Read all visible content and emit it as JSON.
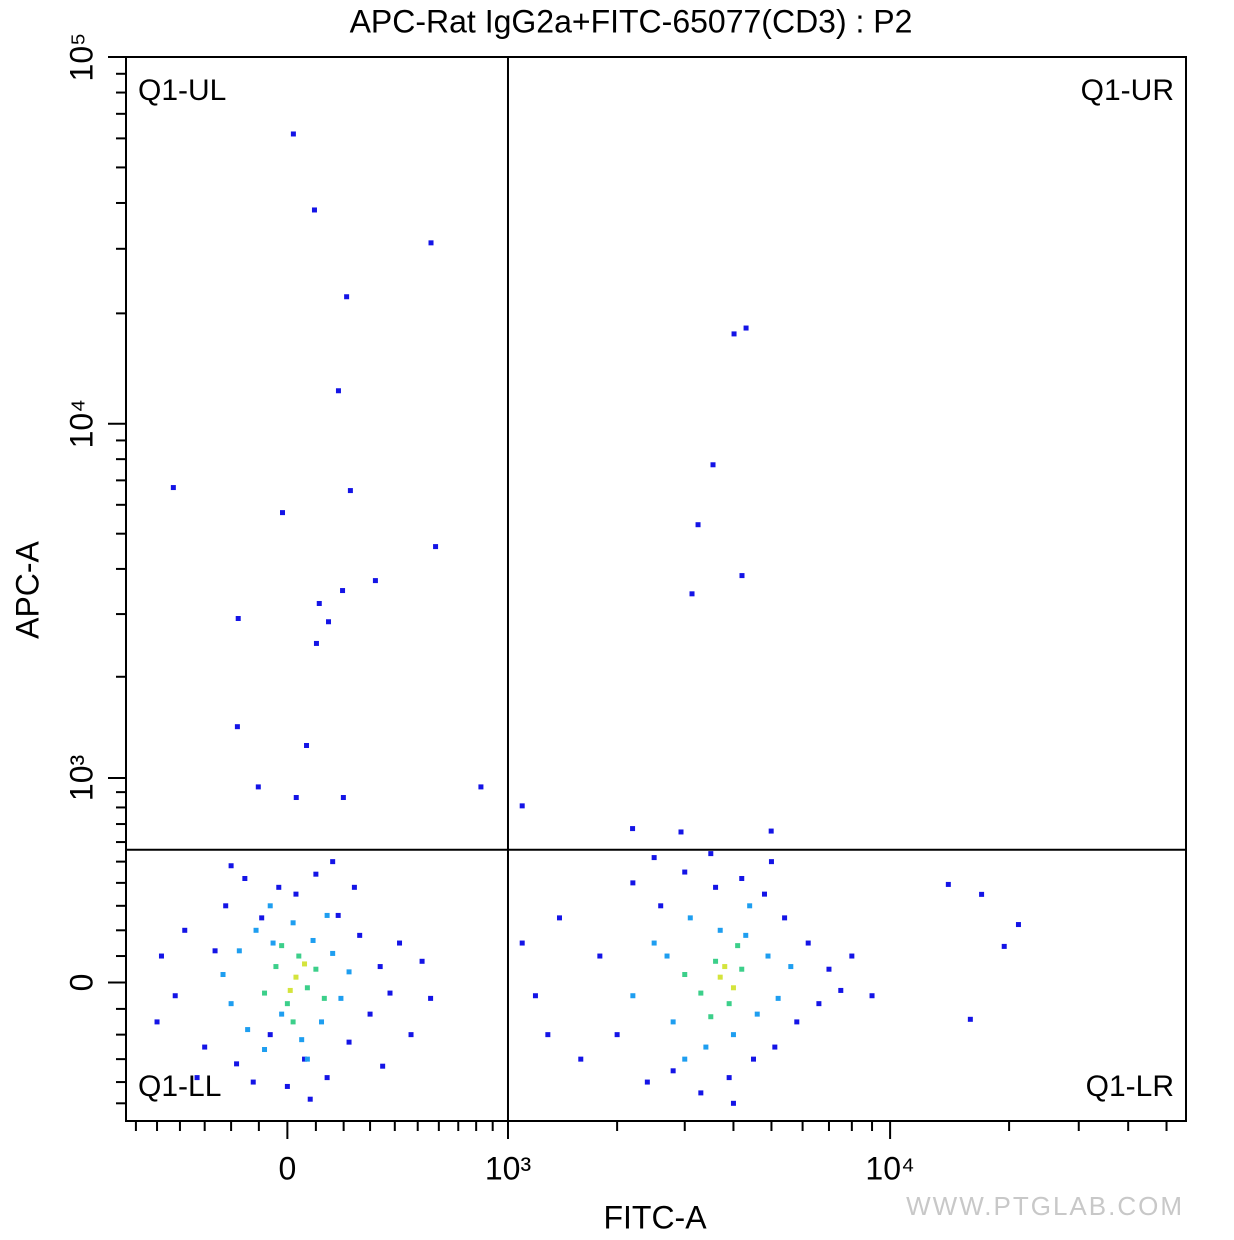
{
  "chart_data": {
    "type": "scatter",
    "title": "APC-Rat IgG2a+FITC-65077(CD3) : P2",
    "x_label": "FITC-A",
    "y_label": "APC-A",
    "watermark": "WWW.PTGLAB.COM",
    "scale": "biexponential",
    "xlim": [
      -650,
      56000
    ],
    "ylim": [
      -590,
      100000
    ],
    "xticks": [
      0,
      {
        "value": 1000,
        "label": "10³"
      },
      {
        "value": 10000,
        "label": "10⁴"
      }
    ],
    "yticks": [
      0,
      {
        "value": 1000,
        "label": "10³"
      },
      {
        "value": 10000,
        "label": "10⁴"
      },
      {
        "value": 100000,
        "label": "10⁵"
      }
    ],
    "xminorticks": [
      -600,
      -500,
      -400,
      -300,
      -200,
      -100,
      100,
      200,
      300,
      400,
      500,
      600,
      700,
      800,
      900,
      2000,
      3000,
      4000,
      5000,
      6000,
      7000,
      8000,
      9000,
      20000,
      30000,
      40000,
      50000
    ],
    "yminorticks": [
      -500,
      -400,
      -300,
      -200,
      -100,
      100,
      200,
      300,
      400,
      500,
      600,
      700,
      800,
      900,
      2000,
      3000,
      4000,
      5000,
      6000,
      7000,
      8000,
      9000,
      20000,
      30000,
      40000,
      50000,
      60000,
      70000,
      80000,
      90000
    ],
    "gate": {
      "x": 1000,
      "y": 560
    },
    "quadrant_labels": [
      "Q1-UL",
      "Q1-UR",
      "Q1-LL",
      "Q1-LR"
    ],
    "series": [
      {
        "color": "#1414e6",
        "x": [
          21,
          95,
          562,
          211,
          181,
          225,
          -428,
          -17,
          584,
          321,
          196,
          112,
          -174,
          145,
          102,
          -177,
          67,
          -102,
          31,
          828,
          199,
          1100,
          4014,
          4308,
          3546,
          3246,
          4206,
          3132,
          2196,
          2934,
          4992,
          21120,
          19440,
          15960,
          14040,
          17040,
          -420,
          -380,
          -300,
          -260,
          -220,
          -180,
          -150,
          -120,
          -90,
          -60,
          -30,
          0,
          30,
          60,
          100,
          140,
          180,
          220,
          260,
          300,
          340,
          380,
          420,
          470,
          520,
          560,
          -500,
          -480,
          160,
          -200,
          80,
          240,
          350,
          -330,
          1200,
          1400,
          1600,
          1800,
          2000,
          2200,
          2400,
          2600,
          2800,
          3000,
          3300,
          3600,
          3900,
          4200,
          4500,
          4800,
          5100,
          5400,
          5800,
          6200,
          6600,
          7000,
          7500,
          8000,
          1100,
          1300,
          9000,
          2500,
          4000,
          3500,
          5000
        ],
        "y": [
          61680,
          38280,
          31140,
          22200,
          12300,
          6564,
          6690,
          5712,
          4608,
          3714,
          3486,
          3210,
          2916,
          2856,
          2484,
          1434,
          1260,
          936,
          864,
          936,
          864,
          810,
          17580,
          18240,
          7722,
          5292,
          3834,
          3414,
          674,
          655,
          660,
          223,
          137,
          -140,
          393,
          349,
          -50,
          200,
          -250,
          120,
          300,
          -320,
          420,
          -400,
          250,
          -200,
          380,
          -420,
          350,
          -300,
          440,
          -380,
          260,
          -230,
          180,
          -120,
          60,
          -40,
          150,
          -200,
          80,
          -60,
          -150,
          100,
          500,
          480,
          -480,
          380,
          -330,
          -380,
          -50,
          250,
          -300,
          100,
          -200,
          400,
          -400,
          300,
          -350,
          450,
          -450,
          380,
          -380,
          420,
          -300,
          350,
          -250,
          250,
          -150,
          150,
          -80,
          50,
          -30,
          100,
          150,
          -200,
          -50,
          520,
          -500,
          540,
          500
        ]
      },
      {
        "color": "#1e9ef0",
        "x": [
          -200,
          -170,
          -140,
          -110,
          -80,
          -50,
          -20,
          20,
          50,
          90,
          120,
          160,
          190,
          220,
          -230,
          70,
          -60,
          140,
          2200,
          2500,
          2800,
          3100,
          3400,
          3700,
          4000,
          4300,
          4600,
          4900,
          5200,
          5600,
          3000,
          4400,
          2700
        ],
        "y": [
          -80,
          120,
          -180,
          200,
          -260,
          150,
          -120,
          230,
          -220,
          160,
          -150,
          110,
          -60,
          40,
          30,
          -300,
          300,
          260,
          -50,
          150,
          -150,
          250,
          -250,
          200,
          -200,
          180,
          -120,
          100,
          -60,
          60,
          -300,
          300,
          100
        ]
      },
      {
        "color": "#3ccf8a",
        "x": [
          -80,
          -40,
          0,
          40,
          70,
          100,
          -20,
          20,
          130,
          3300,
          3600,
          3900,
          4200,
          3500,
          4100,
          3000
        ],
        "y": [
          -40,
          60,
          -80,
          100,
          -20,
          50,
          140,
          -150,
          -60,
          -40,
          80,
          -80,
          50,
          -130,
          140,
          30
        ]
      },
      {
        "color": "#d4e43c",
        "x": [
          30,
          60,
          10,
          3700,
          4000,
          3800
        ],
        "y": [
          20,
          70,
          -30,
          20,
          -20,
          60
        ]
      }
    ]
  }
}
